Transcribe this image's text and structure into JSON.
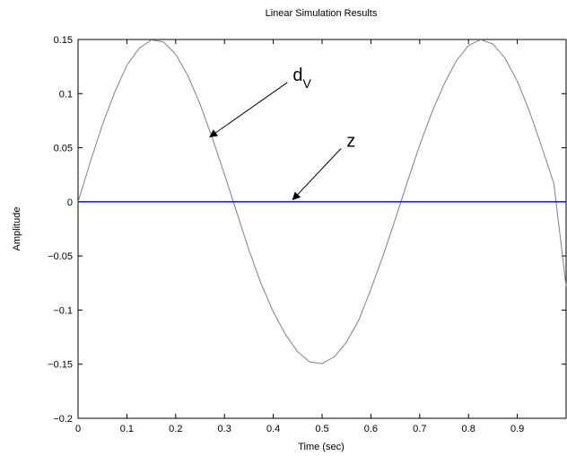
{
  "chart_data": {
    "type": "line",
    "title": "Linear Simulation Results",
    "xlabel": "Time (sec)",
    "ylabel": "Amplitude",
    "xlim": [
      0,
      1
    ],
    "ylim": [
      -0.2,
      0.15
    ],
    "xticks": [
      0,
      0.1,
      0.2,
      0.3,
      0.4,
      0.5,
      0.6,
      0.7,
      0.8,
      0.9
    ],
    "xtick_labels": [
      "0",
      "0.1",
      "0.2",
      "0.3",
      "0.4",
      "0.5",
      "0.6",
      "0.7",
      "0.8",
      "0.9"
    ],
    "yticks": [
      -0.2,
      -0.15,
      -0.1,
      -0.05,
      0,
      0.05,
      0.1,
      0.15
    ],
    "ytick_labels": [
      "−0.2",
      "−0.15",
      "−0.1",
      "−0.05",
      "0",
      "0.05",
      "0.1",
      "0.15"
    ],
    "grid": false,
    "series": [
      {
        "color": "#808080",
        "x": [
          0,
          0.025,
          0.05,
          0.075,
          0.1,
          0.125,
          0.15,
          0.175,
          0.2,
          0.225,
          0.25,
          0.275,
          0.3,
          0.325,
          0.35,
          0.375,
          0.4,
          0.425,
          0.45,
          0.475,
          0.5,
          0.525,
          0.55,
          0.575,
          0.6,
          0.625,
          0.65,
          0.675,
          0.7,
          0.725,
          0.75,
          0.775,
          0.8,
          0.825,
          0.85,
          0.875,
          0.9,
          0.925,
          0.95,
          0.975,
          1.0
        ],
        "y": [
          0,
          0.0368,
          0.0714,
          0.1011,
          0.1262,
          0.1418,
          0.1496,
          0.1478,
          0.1364,
          0.1166,
          0.0902,
          0.059,
          0.0254,
          -0.0094,
          -0.0444,
          -0.0756,
          -0.1016,
          -0.1225,
          -0.1386,
          -0.148,
          -0.1495,
          -0.1432,
          -0.1296,
          -0.1095,
          -0.0808,
          -0.0497,
          -0.016,
          0.0187,
          0.0524,
          0.0827,
          0.1088,
          0.1302,
          0.1445,
          0.1499,
          0.1458,
          0.1326,
          0.1115,
          0.0836,
          0.0508,
          0.0169,
          -0.078
        ]
      },
      {
        "color": "#0000ff",
        "x": [
          0,
          1
        ],
        "y": [
          0,
          0
        ]
      }
    ],
    "annotations": [
      {
        "text": "d",
        "subscript": "V",
        "x": 0.44,
        "y": 0.112,
        "arrow_to_x": 0.27,
        "arrow_to_y": 0.06
      },
      {
        "text": "z",
        "subscript": "",
        "x": 0.55,
        "y": 0.051,
        "arrow_to_x": 0.44,
        "arrow_to_y": 0.002
      }
    ]
  }
}
